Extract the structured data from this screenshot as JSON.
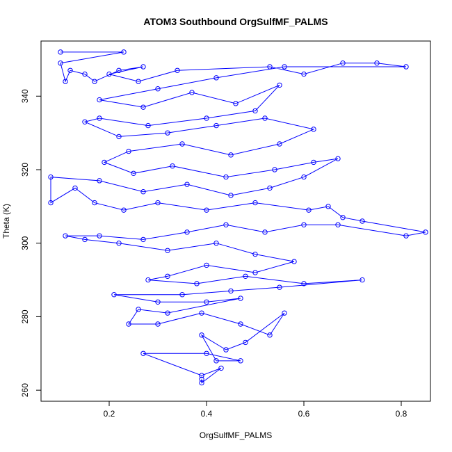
{
  "chart_data": {
    "type": "scatter",
    "title": "ATOM3 Southbound OrgSulfMF_PALMS",
    "xlabel": "OrgSulfMF_PALMS",
    "ylabel": "Theta (K)",
    "xlim": [
      0.06,
      0.86
    ],
    "ylim": [
      257,
      355
    ],
    "xticks": [
      0.2,
      0.4,
      0.6,
      0.8
    ],
    "yticks": [
      260,
      280,
      300,
      320,
      340
    ],
    "grid": false,
    "legend": "none",
    "style": "points connected by lines (open circles)",
    "color": "#0000ff",
    "series": [
      {
        "values": [
          {
            "x": 0.1,
            "y": 352
          },
          {
            "x": 0.23,
            "y": 352
          },
          {
            "x": 0.1,
            "y": 349
          },
          {
            "x": 0.11,
            "y": 344
          },
          {
            "x": 0.12,
            "y": 347
          },
          {
            "x": 0.15,
            "y": 346
          },
          {
            "x": 0.17,
            "y": 344
          },
          {
            "x": 0.22,
            "y": 347
          },
          {
            "x": 0.27,
            "y": 348
          },
          {
            "x": 0.2,
            "y": 346
          },
          {
            "x": 0.26,
            "y": 344
          },
          {
            "x": 0.34,
            "y": 347
          },
          {
            "x": 0.53,
            "y": 348
          },
          {
            "x": 0.6,
            "y": 346
          },
          {
            "x": 0.68,
            "y": 349
          },
          {
            "x": 0.75,
            "y": 349
          },
          {
            "x": 0.81,
            "y": 348
          },
          {
            "x": 0.56,
            "y": 348
          },
          {
            "x": 0.42,
            "y": 345
          },
          {
            "x": 0.3,
            "y": 342
          },
          {
            "x": 0.18,
            "y": 339
          },
          {
            "x": 0.27,
            "y": 337
          },
          {
            "x": 0.37,
            "y": 341
          },
          {
            "x": 0.46,
            "y": 338
          },
          {
            "x": 0.55,
            "y": 343
          },
          {
            "x": 0.5,
            "y": 336
          },
          {
            "x": 0.4,
            "y": 334
          },
          {
            "x": 0.28,
            "y": 332
          },
          {
            "x": 0.18,
            "y": 334
          },
          {
            "x": 0.15,
            "y": 333
          },
          {
            "x": 0.22,
            "y": 329
          },
          {
            "x": 0.32,
            "y": 330
          },
          {
            "x": 0.42,
            "y": 332
          },
          {
            "x": 0.52,
            "y": 334
          },
          {
            "x": 0.62,
            "y": 331
          },
          {
            "x": 0.55,
            "y": 327
          },
          {
            "x": 0.45,
            "y": 324
          },
          {
            "x": 0.35,
            "y": 327
          },
          {
            "x": 0.24,
            "y": 325
          },
          {
            "x": 0.19,
            "y": 322
          },
          {
            "x": 0.25,
            "y": 319
          },
          {
            "x": 0.33,
            "y": 321
          },
          {
            "x": 0.44,
            "y": 318
          },
          {
            "x": 0.54,
            "y": 320
          },
          {
            "x": 0.62,
            "y": 322
          },
          {
            "x": 0.67,
            "y": 323
          },
          {
            "x": 0.6,
            "y": 318
          },
          {
            "x": 0.53,
            "y": 315
          },
          {
            "x": 0.45,
            "y": 313
          },
          {
            "x": 0.36,
            "y": 316
          },
          {
            "x": 0.27,
            "y": 314
          },
          {
            "x": 0.18,
            "y": 317
          },
          {
            "x": 0.08,
            "y": 318
          },
          {
            "x": 0.08,
            "y": 311
          },
          {
            "x": 0.13,
            "y": 315
          },
          {
            "x": 0.17,
            "y": 311
          },
          {
            "x": 0.23,
            "y": 309
          },
          {
            "x": 0.3,
            "y": 311
          },
          {
            "x": 0.4,
            "y": 309
          },
          {
            "x": 0.5,
            "y": 311
          },
          {
            "x": 0.61,
            "y": 309
          },
          {
            "x": 0.65,
            "y": 310
          },
          {
            "x": 0.68,
            "y": 307
          },
          {
            "x": 0.72,
            "y": 306
          },
          {
            "x": 0.85,
            "y": 303
          },
          {
            "x": 0.81,
            "y": 302
          },
          {
            "x": 0.67,
            "y": 305
          },
          {
            "x": 0.6,
            "y": 305
          },
          {
            "x": 0.52,
            "y": 303
          },
          {
            "x": 0.44,
            "y": 305
          },
          {
            "x": 0.36,
            "y": 303
          },
          {
            "x": 0.27,
            "y": 301
          },
          {
            "x": 0.18,
            "y": 302
          },
          {
            "x": 0.11,
            "y": 302
          },
          {
            "x": 0.15,
            "y": 301
          },
          {
            "x": 0.22,
            "y": 300
          },
          {
            "x": 0.32,
            "y": 298
          },
          {
            "x": 0.42,
            "y": 300
          },
          {
            "x": 0.5,
            "y": 297
          },
          {
            "x": 0.58,
            "y": 295
          },
          {
            "x": 0.5,
            "y": 292
          },
          {
            "x": 0.4,
            "y": 294
          },
          {
            "x": 0.32,
            "y": 291
          },
          {
            "x": 0.28,
            "y": 290
          },
          {
            "x": 0.38,
            "y": 289
          },
          {
            "x": 0.48,
            "y": 291
          },
          {
            "x": 0.6,
            "y": 289
          },
          {
            "x": 0.72,
            "y": 290
          },
          {
            "x": 0.55,
            "y": 288
          },
          {
            "x": 0.45,
            "y": 287
          },
          {
            "x": 0.35,
            "y": 286
          },
          {
            "x": 0.21,
            "y": 286
          },
          {
            "x": 0.3,
            "y": 284
          },
          {
            "x": 0.4,
            "y": 284
          },
          {
            "x": 0.47,
            "y": 285
          },
          {
            "x": 0.32,
            "y": 281
          },
          {
            "x": 0.26,
            "y": 282
          },
          {
            "x": 0.24,
            "y": 278
          },
          {
            "x": 0.3,
            "y": 278
          },
          {
            "x": 0.39,
            "y": 281
          },
          {
            "x": 0.47,
            "y": 278
          },
          {
            "x": 0.53,
            "y": 275
          },
          {
            "x": 0.56,
            "y": 281
          },
          {
            "x": 0.48,
            "y": 273
          },
          {
            "x": 0.44,
            "y": 271
          },
          {
            "x": 0.39,
            "y": 275
          },
          {
            "x": 0.42,
            "y": 268
          },
          {
            "x": 0.47,
            "y": 268
          },
          {
            "x": 0.4,
            "y": 270
          },
          {
            "x": 0.27,
            "y": 270
          },
          {
            "x": 0.39,
            "y": 264
          },
          {
            "x": 0.43,
            "y": 266
          },
          {
            "x": 0.39,
            "y": 262
          },
          {
            "x": 0.39,
            "y": 263
          }
        ]
      }
    ]
  }
}
